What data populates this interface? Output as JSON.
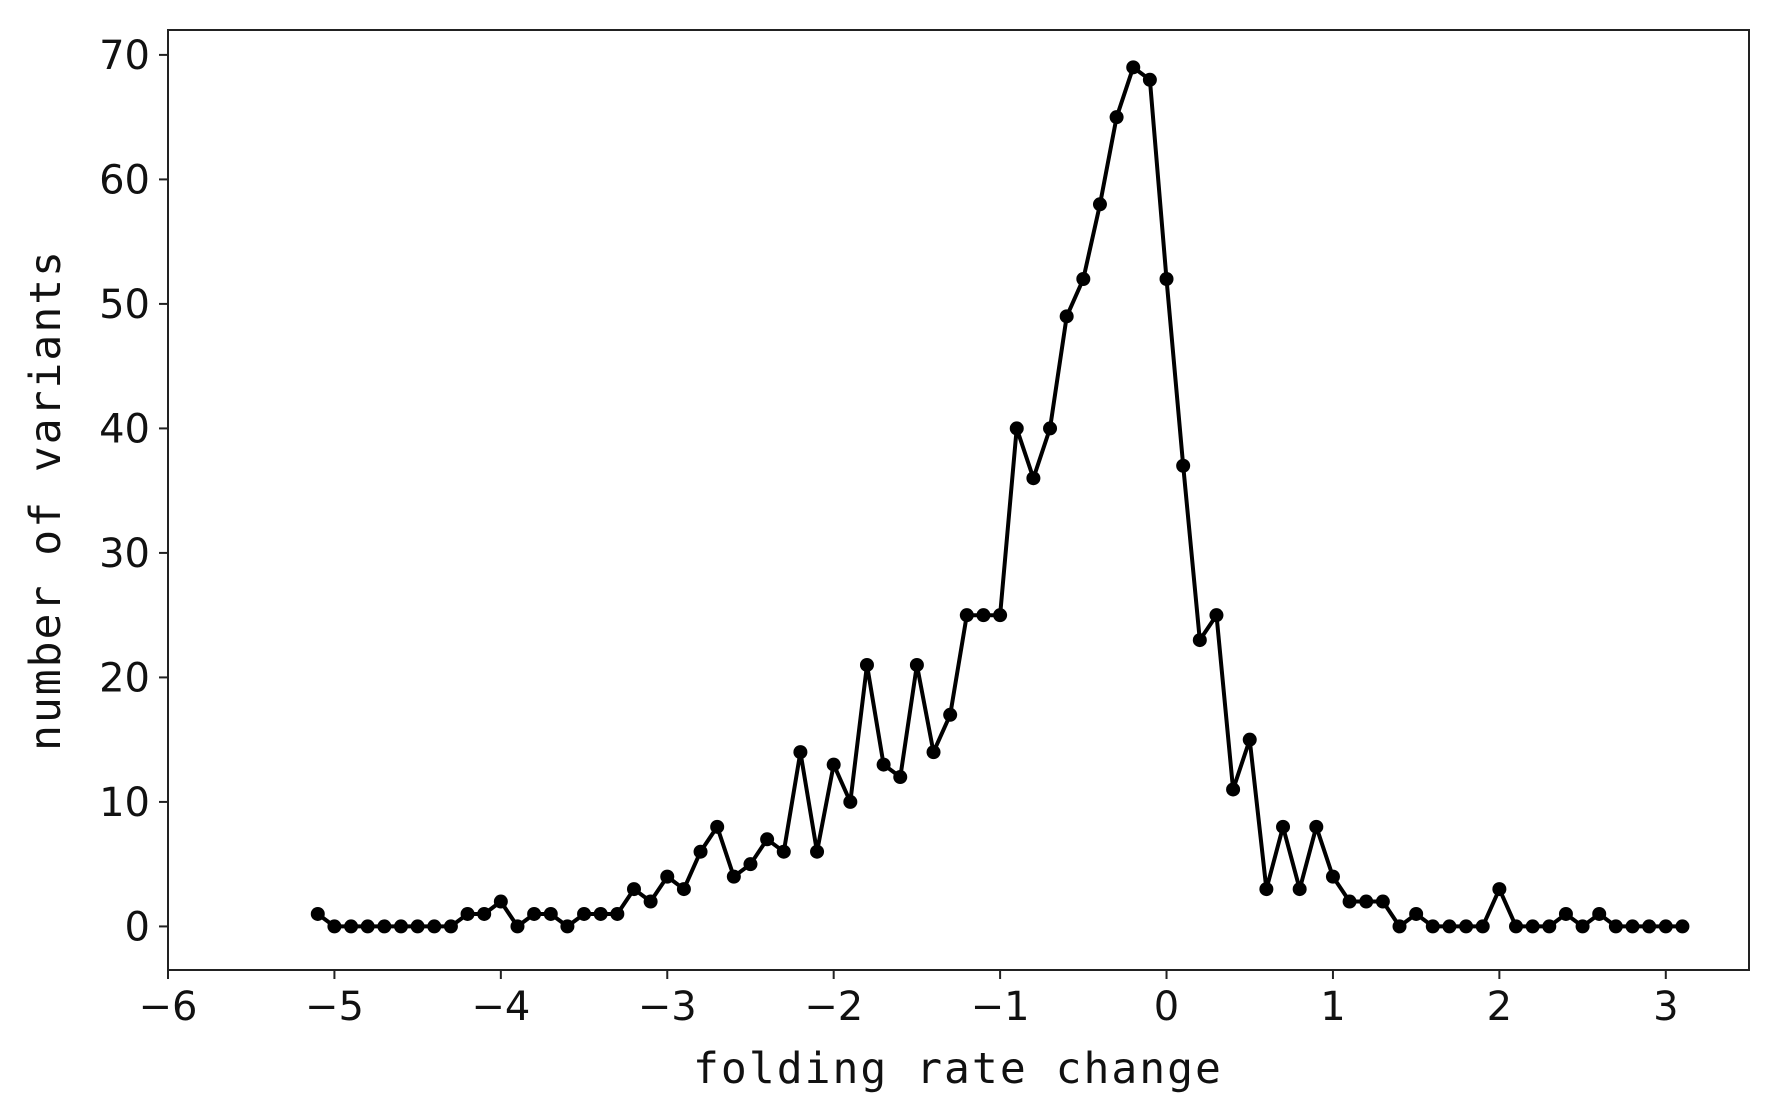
{
  "chart_data": {
    "type": "line",
    "title": "",
    "xlabel": "folding rate change",
    "ylabel": "number of variants",
    "xlim": [
      -6,
      3.5
    ],
    "ylim": [
      -3.5,
      72
    ],
    "xticks": [
      -6,
      -5,
      -4,
      -3,
      -2,
      -1,
      0,
      1,
      2,
      3
    ],
    "xtick_labels": [
      "−6",
      "−5",
      "−4",
      "−3",
      "−2",
      "−1",
      "0",
      "1",
      "2",
      "3"
    ],
    "yticks": [
      0,
      10,
      20,
      30,
      40,
      50,
      60,
      70
    ],
    "ytick_labels": [
      "0",
      "10",
      "20",
      "30",
      "40",
      "50",
      "60",
      "70"
    ],
    "grid": false,
    "legend": "none",
    "series": [
      {
        "color": "#000000",
        "marker": "circle",
        "x": [
          -5.1,
          -5.0,
          -4.9,
          -4.8,
          -4.7,
          -4.6,
          -4.5,
          -4.4,
          -4.3,
          -4.2,
          -4.1,
          -4.0,
          -3.9,
          -3.8,
          -3.7,
          -3.6,
          -3.5,
          -3.4,
          -3.3,
          -3.2,
          -3.1,
          -3.0,
          -2.9,
          -2.8,
          -2.7,
          -2.6,
          -2.5,
          -2.4,
          -2.3,
          -2.2,
          -2.1,
          -2.0,
          -1.9,
          -1.8,
          -1.7,
          -1.6,
          -1.5,
          -1.4,
          -1.3,
          -1.2,
          -1.1,
          -1.0,
          -0.9,
          -0.8,
          -0.7,
          -0.6,
          -0.5,
          -0.4,
          -0.3,
          -0.2,
          -0.1,
          0.0,
          0.1,
          0.2,
          0.3,
          0.4,
          0.5,
          0.6,
          0.7,
          0.8,
          0.9,
          1.0,
          1.1,
          1.2,
          1.3,
          1.4,
          1.5,
          1.6,
          1.7,
          1.8,
          1.9,
          2.0,
          2.1,
          2.2,
          2.3,
          2.4,
          2.5,
          2.6,
          2.7,
          2.8,
          2.9,
          3.0,
          3.1
        ],
        "y": [
          1,
          0,
          0,
          0,
          0,
          0,
          0,
          0,
          0,
          1,
          1,
          2,
          0,
          1,
          1,
          0,
          1,
          1,
          1,
          3,
          2,
          4,
          3,
          6,
          8,
          4,
          5,
          7,
          6,
          14,
          6,
          13,
          10,
          21,
          13,
          12,
          21,
          14,
          17,
          25,
          25,
          25,
          40,
          36,
          40,
          49,
          52,
          58,
          65,
          69,
          68,
          52,
          37,
          23,
          25,
          11,
          15,
          3,
          8,
          3,
          8,
          4,
          2,
          2,
          2,
          0,
          1,
          0,
          0,
          0,
          0,
          3,
          0,
          0,
          0,
          1,
          0,
          1,
          0,
          0,
          0,
          0,
          0
        ]
      }
    ]
  }
}
